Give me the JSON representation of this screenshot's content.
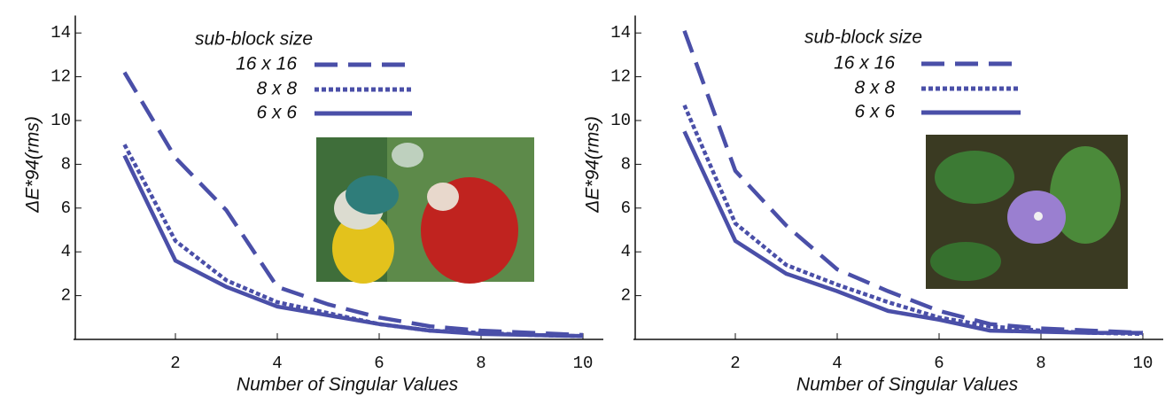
{
  "chart_data": [
    {
      "type": "line",
      "x_label": "Number of Singular Values",
      "y_label": "ΔE*94(rms)",
      "legend_title": "sub-block size",
      "x": [
        1,
        2,
        3,
        4,
        5,
        6,
        7,
        8,
        9,
        10
      ],
      "xlim": [
        0,
        10.4
      ],
      "ylim": [
        0,
        14.8
      ],
      "xticks": [
        2,
        4,
        6,
        8,
        10
      ],
      "yticks": [
        2,
        4,
        6,
        8,
        10,
        12,
        14
      ],
      "series": [
        {
          "name": "16 x 16",
          "color": "#4a4fa8",
          "dash": "dashed",
          "values": [
            12.2,
            8.3,
            5.9,
            2.4,
            1.6,
            1.0,
            0.6,
            0.4,
            0.3,
            0.2
          ]
        },
        {
          "name": "8 x 8",
          "color": "#4a4fa8",
          "dash": "dotted",
          "values": [
            8.9,
            4.5,
            2.7,
            1.7,
            1.2,
            0.7,
            0.4,
            0.3,
            0.2,
            0.15
          ]
        },
        {
          "name": "6 x 6",
          "color": "#4a4fa8",
          "dash": "solid",
          "values": [
            8.4,
            3.6,
            2.4,
            1.5,
            1.1,
            0.7,
            0.4,
            0.25,
            0.2,
            0.15
          ]
        }
      ]
    },
    {
      "type": "line",
      "x_label": "Number of Singular Values",
      "y_label": "ΔE*94(rms)",
      "legend_title": "sub-block size",
      "x": [
        1,
        2,
        3,
        4,
        5,
        6,
        7,
        8,
        9,
        10
      ],
      "xlim": [
        0,
        10.4
      ],
      "ylim": [
        0,
        14.8
      ],
      "xticks": [
        2,
        4,
        6,
        8,
        10
      ],
      "yticks": [
        2,
        4,
        6,
        8,
        10,
        12,
        14
      ],
      "series": [
        {
          "name": "16 x 16",
          "color": "#4a4fa8",
          "dash": "dashed",
          "values": [
            14.1,
            7.7,
            5.2,
            3.2,
            2.2,
            1.3,
            0.7,
            0.5,
            0.4,
            0.3
          ]
        },
        {
          "name": "8 x 8",
          "color": "#4a4fa8",
          "dash": "dotted",
          "values": [
            10.7,
            5.3,
            3.4,
            2.5,
            1.7,
            1.0,
            0.6,
            0.4,
            0.3,
            0.25
          ]
        },
        {
          "name": "6 x 6",
          "color": "#4a4fa8",
          "dash": "solid",
          "values": [
            9.5,
            4.5,
            3.0,
            2.2,
            1.3,
            0.9,
            0.4,
            0.35,
            0.3,
            0.3
          ]
        }
      ]
    }
  ]
}
